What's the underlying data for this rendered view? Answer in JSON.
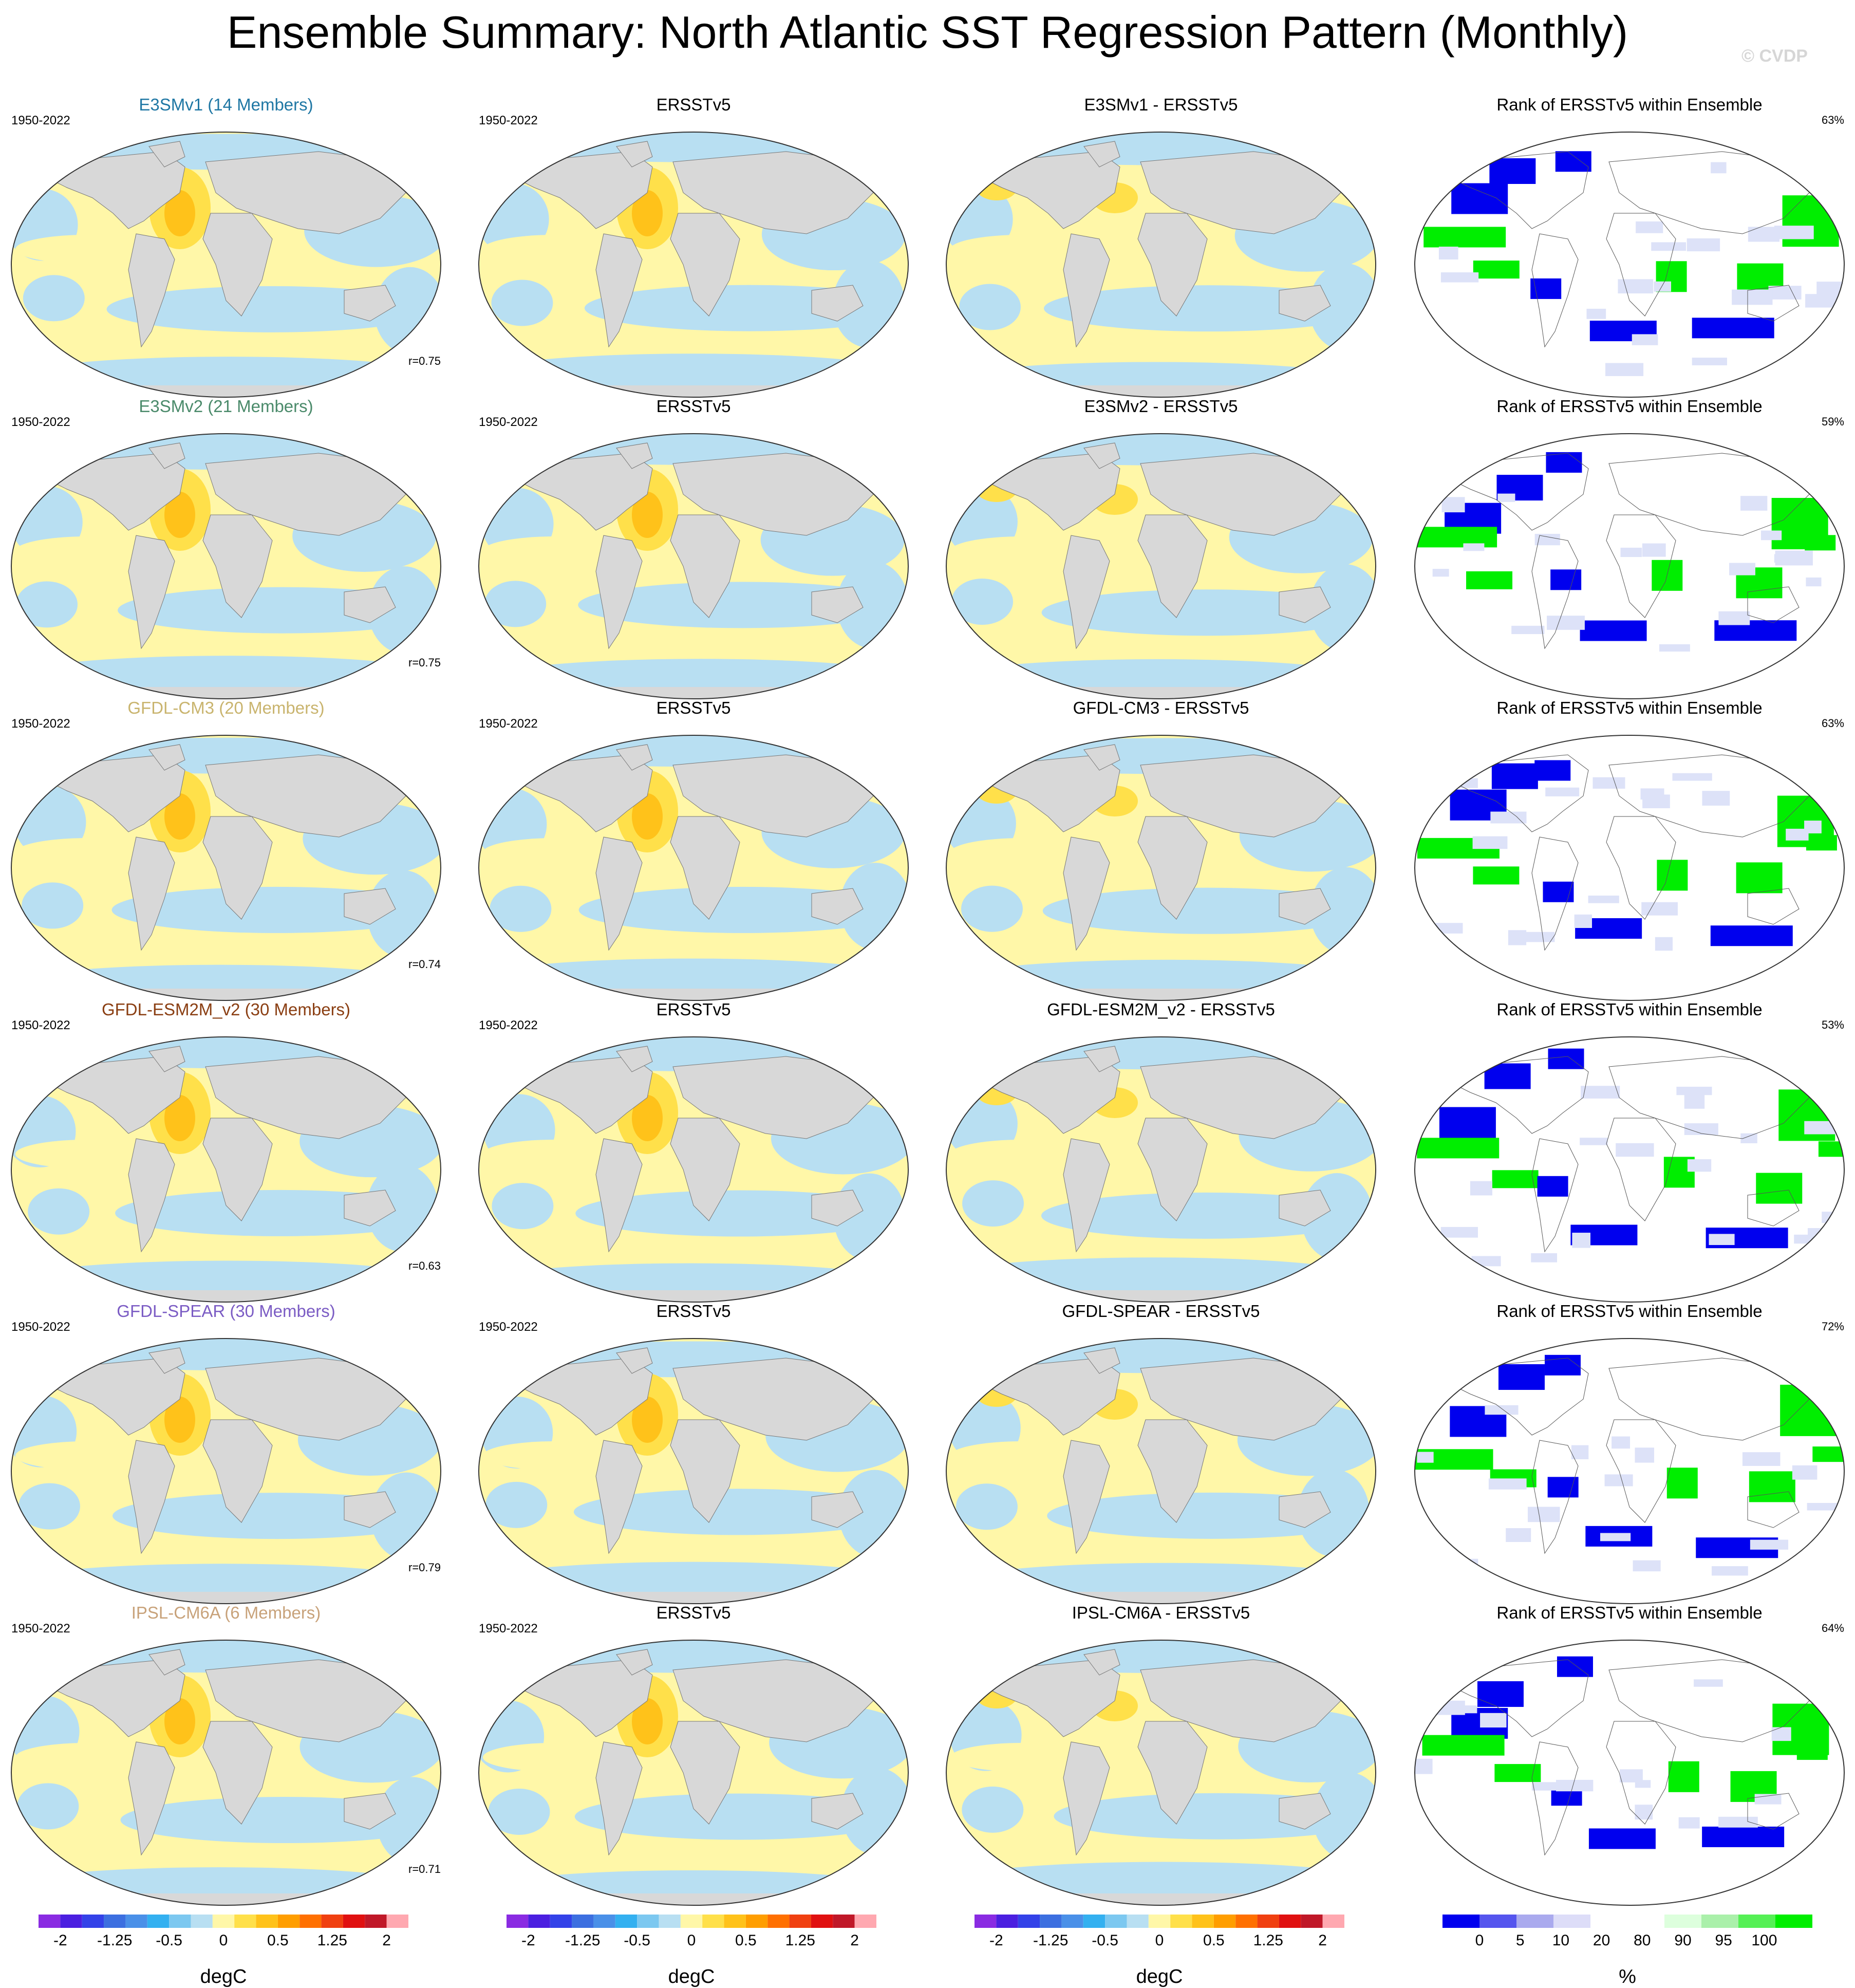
{
  "title": "Ensemble Summary: North Atlantic SST Regression Pattern (Monthly)",
  "watermark": "© CVDP",
  "rows": [
    {
      "model": "E3SMv1 (14 Members)",
      "model_color": "#1f77a4",
      "period": "1950-2022",
      "obs": "ERSSTv5",
      "obs_period": "1950-2022",
      "diff": "E3SMv1 - ERSSTv5",
      "rank": "Rank of ERSSTv5 within Ensemble",
      "pct": "63%",
      "r": "r=0.75"
    },
    {
      "model": "E3SMv2 (21 Members)",
      "model_color": "#4a8a6a",
      "period": "1950-2022",
      "obs": "ERSSTv5",
      "obs_period": "1950-2022",
      "diff": "E3SMv2 - ERSSTv5",
      "rank": "Rank of ERSSTv5 within Ensemble",
      "pct": "59%",
      "r": "r=0.75"
    },
    {
      "model": "GFDL-CM3 (20 Members)",
      "model_color": "#c9b46e",
      "period": "1950-2022",
      "obs": "ERSSTv5",
      "obs_period": "1950-2022",
      "diff": "GFDL-CM3 - ERSSTv5",
      "rank": "Rank of ERSSTv5 within Ensemble",
      "pct": "63%",
      "r": "r=0.74"
    },
    {
      "model": "GFDL-ESM2M_v2 (30 Members)",
      "model_color": "#8a3e12",
      "period": "1950-2022",
      "obs": "ERSSTv5",
      "obs_period": "1950-2022",
      "diff": "GFDL-ESM2M_v2 - ERSSTv5",
      "rank": "Rank of ERSSTv5 within Ensemble",
      "pct": "53%",
      "r": "r=0.63"
    },
    {
      "model": "GFDL-SPEAR (30 Members)",
      "model_color": "#7b5cc4",
      "period": "1950-2022",
      "obs": "ERSSTv5",
      "obs_period": "1950-2022",
      "diff": "GFDL-SPEAR - ERSSTv5",
      "rank": "Rank of ERSSTv5 within Ensemble",
      "pct": "72%",
      "r": "r=0.79"
    },
    {
      "model": "IPSL-CM6A (6 Members)",
      "model_color": "#c8a27a",
      "period": "1950-2022",
      "obs": "ERSSTv5",
      "obs_period": "1950-2022",
      "diff": "IPSL-CM6A - ERSSTv5",
      "rank": "Rank of ERSSTv5 within Ensemble",
      "pct": "64%",
      "r": "r=0.71"
    }
  ],
  "colorbars": {
    "sst": {
      "colors": [
        "#8a2be2",
        "#4b1fe0",
        "#3342e8",
        "#3c6fe0",
        "#4a90e8",
        "#33b0f0",
        "#7cc8f0",
        "#b8dff2",
        "#fff7a8",
        "#ffe04a",
        "#ffc21a",
        "#ff9e00",
        "#ff7000",
        "#f04010",
        "#e01010",
        "#c01828",
        "#ffa8b0"
      ],
      "ticks": [
        "-2",
        "-1.25",
        "-0.5",
        "0",
        "0.5",
        "1.25",
        "2"
      ],
      "label": "degC"
    },
    "rank": {
      "colors": [
        "#0000ee",
        "#5555ee",
        "#aaaaee",
        "#ddddf8",
        "#ffffff",
        "#ffffff",
        "#ddffdd",
        "#aaf0aa",
        "#55f055",
        "#00ee00"
      ],
      "ticks": [
        "0",
        "5",
        "10",
        "20",
        "80",
        "90",
        "95",
        "100"
      ],
      "label": "%"
    }
  },
  "icons": {
    "coastline": "world-coastline",
    "land": "land-mask"
  },
  "colors": {
    "land": "#d8d8d8",
    "ocean_neg": "#b8dff2",
    "ocean_pos": "#fff7a8",
    "ocean_pos2": "#ffe04a",
    "ocean_pos3": "#ffc21a",
    "rank_low": "#0000ee",
    "rank_high": "#00ee00"
  }
}
